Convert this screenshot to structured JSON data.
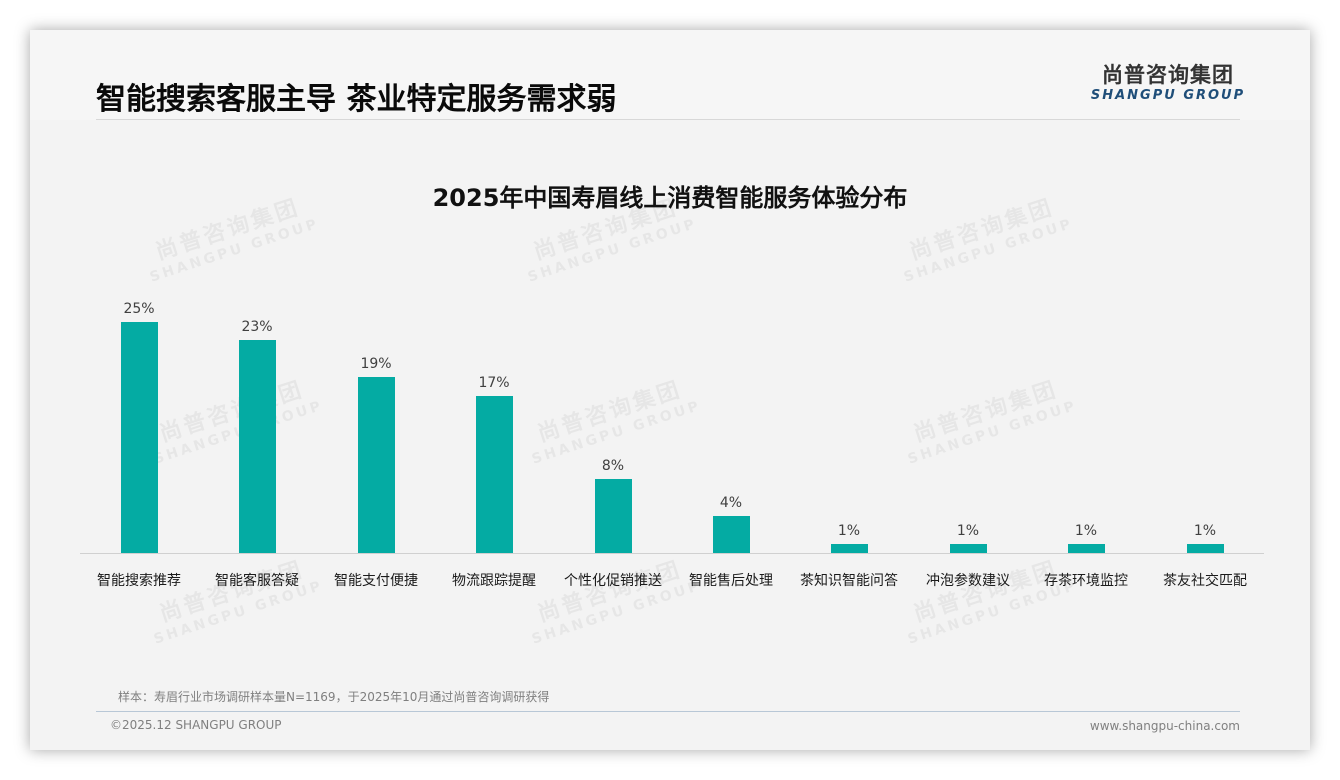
{
  "header": {
    "title": "智能搜索客服主导 茶业特定服务需求弱",
    "logo_cn": "尚普咨询集团",
    "logo_en": "SHANGPU GROUP"
  },
  "watermark": {
    "cn": "尚普咨询集团",
    "en": "SHANGPU GROUP"
  },
  "colors": {
    "bar": "#04aba3",
    "logo_en": "#1f4e79"
  },
  "chart_data": {
    "type": "bar",
    "title": "2025年中国寿眉线上消费智能服务体验分布",
    "xlabel": "",
    "ylabel": "",
    "ylim": [
      0,
      25
    ],
    "grid": false,
    "legend": null,
    "categories": [
      "智能搜索推荐",
      "智能客服答疑",
      "智能支付便捷",
      "物流跟踪提醒",
      "个性化促销推送",
      "智能售后处理",
      "茶知识智能问答",
      "冲泡参数建议",
      "存茶环境监控",
      "茶友社交匹配"
    ],
    "values": [
      25,
      23,
      19,
      17,
      8,
      4,
      1,
      1,
      1,
      1
    ],
    "value_labels": [
      "25%",
      "23%",
      "19%",
      "17%",
      "8%",
      "4%",
      "1%",
      "1%",
      "1%",
      "1%"
    ],
    "unit": "%"
  },
  "footer": {
    "note": "样本：寿眉行业市场调研样本量N=1169，于2025年10月通过尚普咨询调研获得",
    "copyright": "©2025.12 SHANGPU GROUP",
    "website": "www.shangpu-china.com"
  }
}
